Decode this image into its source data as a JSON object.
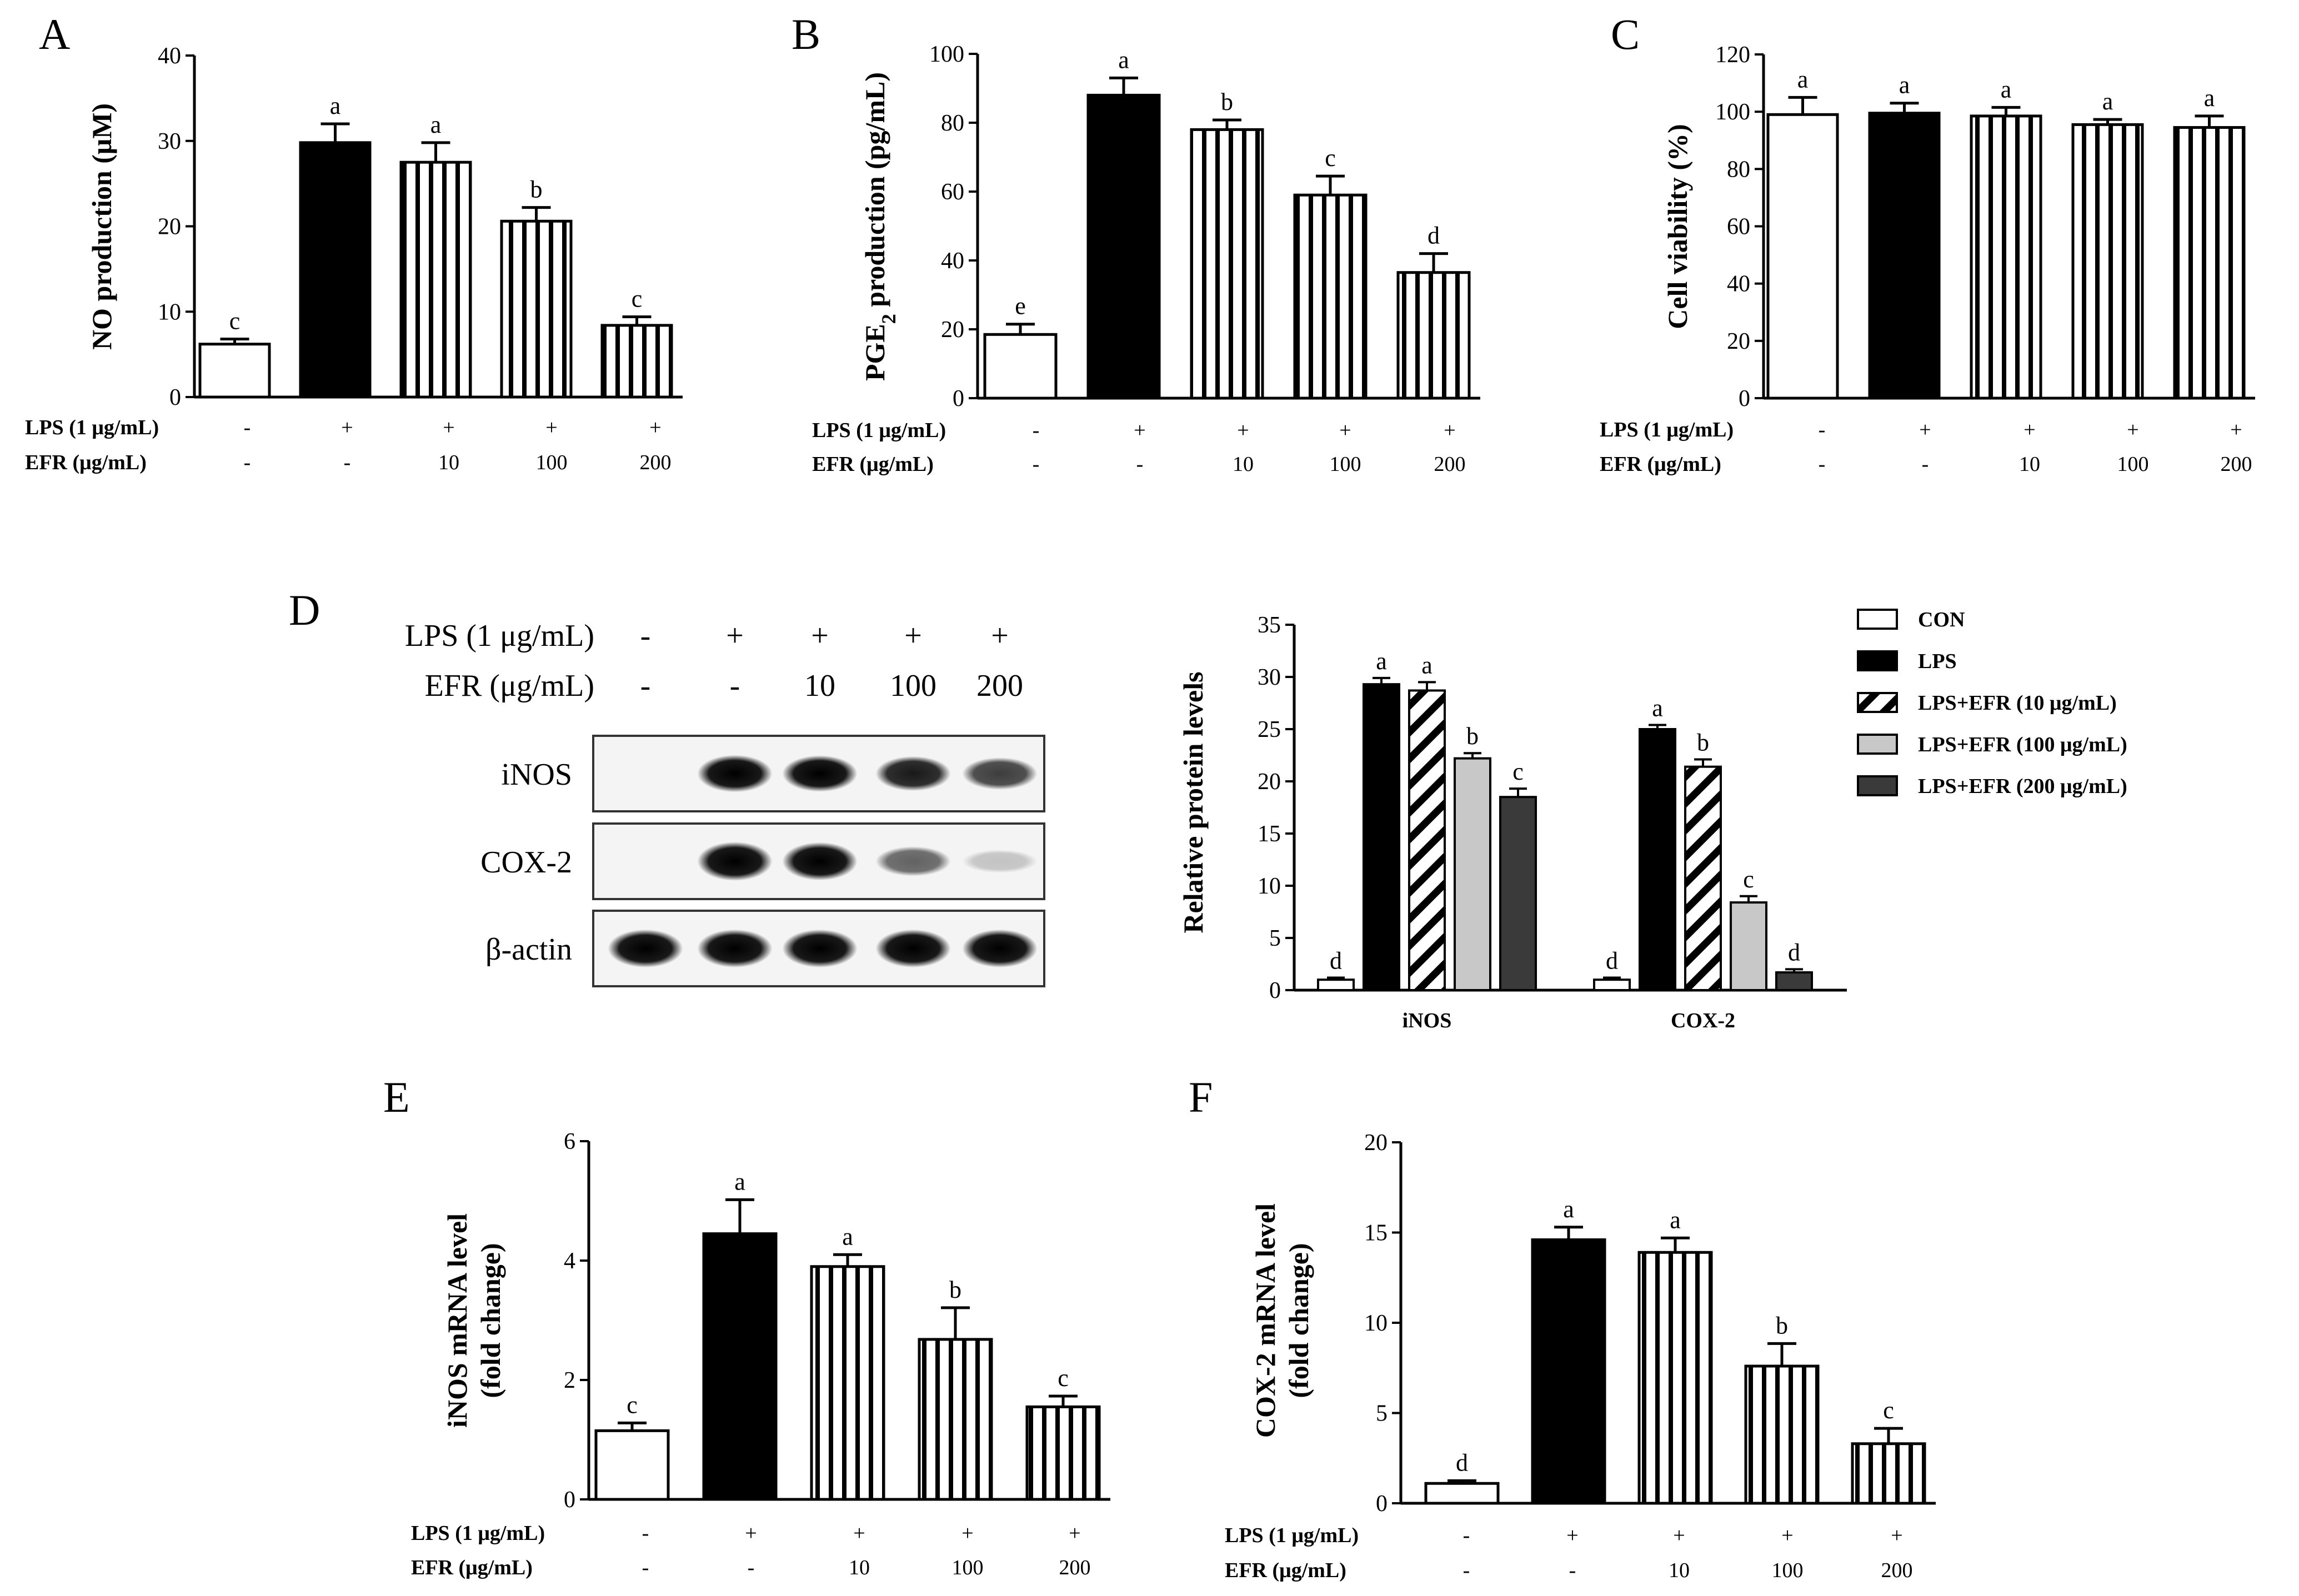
{
  "panels": [
    {
      "id": "A",
      "type": "bar",
      "ylabel": "NO production (μM)",
      "ylim": [
        0,
        40
      ],
      "yticks": [
        0,
        10,
        20,
        30,
        40
      ],
      "values": [
        6.2,
        29.8,
        27.5,
        20.6,
        8.4
      ],
      "errors": [
        0.6,
        2.2,
        2.3,
        1.6,
        1.0
      ],
      "sig": [
        "c",
        "a",
        "a",
        "b",
        "c"
      ],
      "fills": [
        "open",
        "solid",
        "stripe",
        "stripe",
        "stripe"
      ],
      "rows": [
        {
          "label": "LPS (1 μg/mL)",
          "values": [
            "-",
            "+",
            "+",
            "+",
            "+"
          ]
        },
        {
          "label": "EFR (μg/mL)",
          "values": [
            "-",
            "-",
            "10",
            "100",
            "200"
          ]
        }
      ]
    },
    {
      "id": "B",
      "type": "bar",
      "ylabel_main": "PGE",
      "ylabel_sub": "2",
      "ylabel_tail": " production (pg/mL)",
      "ylim": [
        0,
        100
      ],
      "yticks": [
        0,
        20,
        40,
        60,
        80,
        100
      ],
      "values": [
        18.5,
        88.0,
        78.0,
        59.0,
        36.5
      ],
      "errors": [
        3.0,
        5.0,
        2.8,
        5.5,
        5.5
      ],
      "sig": [
        "e",
        "a",
        "b",
        "c",
        "d"
      ],
      "fills": [
        "open",
        "solid",
        "stripe",
        "stripe",
        "stripe"
      ],
      "rows": [
        {
          "label": "LPS (1 μg/mL)",
          "values": [
            "-",
            "+",
            "+",
            "+",
            "+"
          ]
        },
        {
          "label": "EFR (μg/mL)",
          "values": [
            "-",
            "-",
            "10",
            "100",
            "200"
          ]
        }
      ]
    },
    {
      "id": "C",
      "type": "bar",
      "ylabel": "Cell viability (%)",
      "ylim": [
        0,
        120
      ],
      "yticks": [
        0,
        20,
        40,
        60,
        80,
        100,
        120
      ],
      "values": [
        99.0,
        99.5,
        98.5,
        95.5,
        94.5
      ],
      "errors": [
        6.0,
        3.5,
        3.0,
        1.8,
        4.0
      ],
      "sig": [
        "a",
        "a",
        "a",
        "a",
        "a"
      ],
      "fills": [
        "open",
        "solid",
        "stripe",
        "stripe",
        "stripe"
      ],
      "rows": [
        {
          "label": "LPS (1 μg/mL)",
          "values": [
            "-",
            "+",
            "+",
            "+",
            "+"
          ]
        },
        {
          "label": "EFR (μg/mL)",
          "values": [
            "-",
            "-",
            "10",
            "100",
            "200"
          ]
        }
      ]
    },
    {
      "id": "E",
      "type": "bar",
      "ylabel_lines": [
        "iNOS mRNA level",
        "(fold change)"
      ],
      "ylim": [
        0,
        6
      ],
      "yticks": [
        0,
        2,
        4,
        6
      ],
      "values": [
        1.15,
        4.45,
        3.9,
        2.68,
        1.55
      ],
      "errors": [
        0.13,
        0.57,
        0.2,
        0.53,
        0.18
      ],
      "sig": [
        "c",
        "a",
        "a",
        "b",
        "c"
      ],
      "fills": [
        "open",
        "solid",
        "stripe",
        "stripe",
        "stripe"
      ],
      "rows": [
        {
          "label": "LPS (1 μg/mL)",
          "values": [
            "-",
            "+",
            "+",
            "+",
            "+"
          ]
        },
        {
          "label": "EFR (μg/mL)",
          "values": [
            "-",
            "-",
            "10",
            "100",
            "200"
          ]
        }
      ]
    },
    {
      "id": "F",
      "type": "bar",
      "ylabel_lines": [
        "COX-2 mRNA level",
        "(fold change)"
      ],
      "ylim": [
        0,
        20
      ],
      "yticks": [
        0,
        5,
        10,
        15,
        20
      ],
      "values": [
        1.1,
        14.6,
        13.9,
        7.6,
        3.3
      ],
      "errors": [
        0.15,
        0.7,
        0.8,
        1.25,
        0.85
      ],
      "sig": [
        "d",
        "a",
        "a",
        "b",
        "c"
      ],
      "fills": [
        "open",
        "solid",
        "stripe",
        "stripe",
        "stripe"
      ],
      "rows": [
        {
          "label": "LPS (1 μg/mL)",
          "values": [
            "-",
            "+",
            "+",
            "+",
            "+"
          ]
        },
        {
          "label": "EFR (μg/mL)",
          "values": [
            "-",
            "-",
            "10",
            "100",
            "200"
          ]
        }
      ]
    }
  ],
  "panel_d": {
    "id": "D",
    "blot": {
      "rows": [
        {
          "label": "LPS (1 μg/mL)",
          "values": [
            "-",
            "+",
            "+",
            "+",
            "+"
          ]
        },
        {
          "label": "EFR (μg/mL)",
          "values": [
            "-",
            "-",
            "10",
            "100",
            "200"
          ]
        }
      ],
      "bands": [
        {
          "name": "iNOS",
          "intensity": [
            0.0,
            0.9,
            0.85,
            0.75,
            0.6
          ]
        },
        {
          "name": "COX-2",
          "intensity": [
            0.0,
            1.0,
            0.95,
            0.45,
            0.05
          ]
        },
        {
          "name": "β-actin",
          "intensity": [
            0.95,
            0.95,
            0.95,
            0.95,
            0.95
          ]
        }
      ]
    },
    "chart": {
      "type": "bar",
      "ylabel": "Relative protein levels",
      "ylim": [
        0,
        35
      ],
      "yticks": [
        0,
        5,
        10,
        15,
        20,
        25,
        30,
        35
      ],
      "categories": [
        "iNOS",
        "COX-2"
      ],
      "series": [
        {
          "name": "CON",
          "fill": "open",
          "values": [
            1.0,
            1.0
          ],
          "errors": [
            0.2,
            0.2
          ],
          "sig": [
            "d",
            "d"
          ]
        },
        {
          "name": "LPS",
          "fill": "solid",
          "values": [
            29.3,
            25.0
          ],
          "errors": [
            0.6,
            0.4
          ],
          "sig": [
            "a",
            "a"
          ]
        },
        {
          "name": "LPS+EFR (10 μg/mL)",
          "fill": "hatch",
          "values": [
            28.7,
            21.4
          ],
          "errors": [
            0.8,
            0.7
          ],
          "sig": [
            "a",
            "b"
          ]
        },
        {
          "name": "LPS+EFR (100 μg/mL)",
          "fill": "light",
          "values": [
            22.2,
            8.4
          ],
          "errors": [
            0.5,
            0.6
          ],
          "sig": [
            "b",
            "c"
          ]
        },
        {
          "name": "LPS+EFR (200 μg/mL)",
          "fill": "dark",
          "values": [
            18.5,
            1.7
          ],
          "errors": [
            0.8,
            0.3
          ],
          "sig": [
            "c",
            "d"
          ]
        }
      ]
    }
  }
}
